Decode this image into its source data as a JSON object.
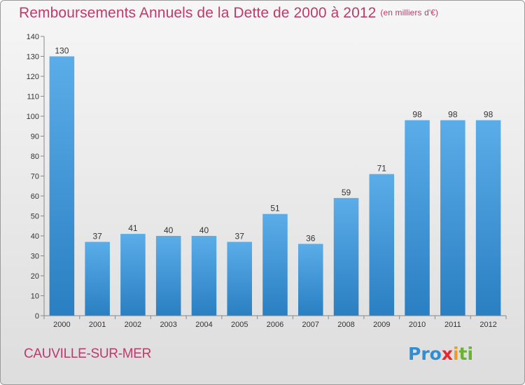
{
  "chart_data": {
    "type": "bar",
    "title": "Remboursements Annuels de la Dette de 2000 à 2012",
    "subtitle": "(en milliers d'€)",
    "categories": [
      "2000",
      "2001",
      "2002",
      "2003",
      "2004",
      "2005",
      "2006",
      "2007",
      "2008",
      "2009",
      "2010",
      "2011",
      "2012"
    ],
    "values": [
      130,
      37,
      41,
      40,
      40,
      37,
      51,
      36,
      59,
      71,
      98,
      98,
      98
    ],
    "ylim": [
      0,
      140
    ],
    "yticks": [
      0,
      10,
      20,
      30,
      40,
      50,
      60,
      70,
      80,
      90,
      100,
      110,
      120,
      130,
      140
    ],
    "xlabel": "",
    "ylabel": "",
    "grid": false,
    "bar_color": "#3a93d6"
  },
  "footer": {
    "commune": "CAUVILLE-SUR-MER",
    "logo": {
      "p1": "Pro",
      "p2": "x",
      "p3": "i",
      "p4": "ti"
    }
  }
}
